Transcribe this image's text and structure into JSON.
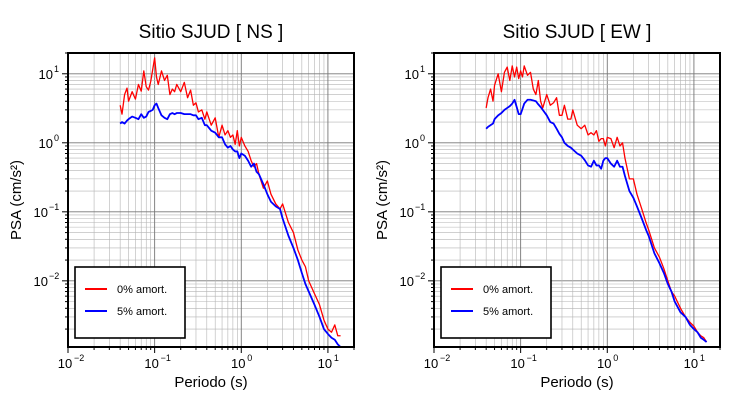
{
  "figure": {
    "legend_swatch_colors": {
      "series_0": "#ff0000",
      "series_1": "#0000ff"
    }
  },
  "chart_data": [
    {
      "type": "line",
      "title": "Sitio SJUD [ NS ]",
      "xlabel": "Periodo (s)",
      "ylabel": "PSA (cm/s²)",
      "x_scale": "log",
      "y_scale": "log",
      "xlim": [
        0.01,
        20
      ],
      "ylim": [
        0.0011,
        20
      ],
      "x_ticks": [
        {
          "value": 0.01,
          "base": "10",
          "exp": "−2"
        },
        {
          "value": 0.1,
          "base": "10",
          "exp": "−1"
        },
        {
          "value": 1,
          "base": "10",
          "exp": "0"
        },
        {
          "value": 10,
          "base": "10",
          "exp": "1"
        }
      ],
      "y_ticks": [
        {
          "value": 0.01,
          "base": "10",
          "exp": "−2"
        },
        {
          "value": 0.1,
          "base": "10",
          "exp": "−1"
        },
        {
          "value": 1,
          "base": "10",
          "exp": "0"
        },
        {
          "value": 10,
          "base": "10",
          "exp": "1"
        }
      ],
      "grid": true,
      "legend_position": "bottom-left",
      "series": [
        {
          "name": "0% amort.",
          "color": "#ff0000",
          "x": [
            0.04,
            0.042,
            0.045,
            0.048,
            0.05,
            0.055,
            0.06,
            0.065,
            0.07,
            0.075,
            0.08,
            0.085,
            0.09,
            0.095,
            0.1,
            0.105,
            0.11,
            0.12,
            0.13,
            0.14,
            0.15,
            0.16,
            0.17,
            0.18,
            0.2,
            0.22,
            0.24,
            0.26,
            0.28,
            0.3,
            0.32,
            0.35,
            0.38,
            0.4,
            0.45,
            0.5,
            0.55,
            0.6,
            0.65,
            0.7,
            0.75,
            0.8,
            0.85,
            0.9,
            0.95,
            1.0,
            1.1,
            1.2,
            1.3,
            1.4,
            1.5,
            1.6,
            1.8,
            2.0,
            2.2,
            2.5,
            2.8,
            3.0,
            3.5,
            4.0,
            4.5,
            5.0,
            5.5,
            6.0,
            7.0,
            8.0,
            9.0,
            10.0,
            11.0,
            12.0,
            13.0,
            14.0
          ],
          "y": [
            3.5,
            2.6,
            5.0,
            6.2,
            4.0,
            5.5,
            4.3,
            7.0,
            5.6,
            11.0,
            6.5,
            5.8,
            7.7,
            11.5,
            17.0,
            9.0,
            7.0,
            11.0,
            8.0,
            9.5,
            5.0,
            6.0,
            5.5,
            7.0,
            5.5,
            7.5,
            4.5,
            5.8,
            3.5,
            3.8,
            2.8,
            3.0,
            2.2,
            2.8,
            1.8,
            2.3,
            1.2,
            1.8,
            1.3,
            1.5,
            1.2,
            1.3,
            0.95,
            1.5,
            0.9,
            1.2,
            0.9,
            0.75,
            0.55,
            0.45,
            0.5,
            0.35,
            0.22,
            0.28,
            0.18,
            0.13,
            0.11,
            0.13,
            0.07,
            0.05,
            0.028,
            0.02,
            0.016,
            0.01,
            0.0065,
            0.0045,
            0.0027,
            0.002,
            0.0018,
            0.0023,
            0.0016,
            0.0016
          ]
        },
        {
          "name": "5% amort.",
          "color": "#0000ff",
          "x": [
            0.04,
            0.042,
            0.045,
            0.048,
            0.05,
            0.055,
            0.06,
            0.065,
            0.07,
            0.075,
            0.08,
            0.085,
            0.09,
            0.095,
            0.1,
            0.105,
            0.11,
            0.12,
            0.13,
            0.14,
            0.15,
            0.16,
            0.17,
            0.18,
            0.2,
            0.22,
            0.24,
            0.26,
            0.28,
            0.3,
            0.32,
            0.35,
            0.38,
            0.4,
            0.45,
            0.5,
            0.55,
            0.6,
            0.65,
            0.7,
            0.75,
            0.8,
            0.85,
            0.9,
            0.95,
            1.0,
            1.1,
            1.2,
            1.3,
            1.4,
            1.5,
            1.6,
            1.8,
            2.0,
            2.2,
            2.5,
            2.8,
            3.0,
            3.5,
            4.0,
            4.5,
            5.0,
            5.5,
            6.0,
            7.0,
            8.0,
            9.0,
            10.0,
            11.0,
            12.0,
            13.0,
            14.0
          ],
          "y": [
            1.9,
            2.0,
            1.9,
            2.1,
            2.2,
            2.4,
            2.3,
            2.2,
            2.6,
            2.3,
            2.4,
            2.8,
            2.9,
            3.0,
            3.5,
            3.7,
            3.2,
            2.5,
            2.3,
            2.2,
            2.6,
            2.7,
            2.6,
            2.7,
            2.7,
            2.6,
            2.6,
            2.6,
            2.5,
            2.5,
            2.2,
            2.3,
            1.8,
            1.8,
            1.5,
            1.4,
            1.2,
            1.2,
            0.95,
            0.85,
            0.9,
            0.8,
            0.75,
            0.75,
            0.6,
            0.7,
            0.65,
            0.55,
            0.45,
            0.5,
            0.38,
            0.35,
            0.25,
            0.18,
            0.14,
            0.12,
            0.11,
            0.08,
            0.045,
            0.03,
            0.02,
            0.013,
            0.009,
            0.007,
            0.0045,
            0.003,
            0.002,
            0.0017,
            0.0015,
            0.0014,
            0.0012,
            0.0011
          ]
        }
      ]
    },
    {
      "type": "line",
      "title": "Sitio SJUD [ EW ]",
      "xlabel": "Periodo (s)",
      "ylabel": "PSA (cm/s²)",
      "x_scale": "log",
      "y_scale": "log",
      "xlim": [
        0.01,
        20
      ],
      "ylim": [
        0.0011,
        20
      ],
      "x_ticks": [
        {
          "value": 0.01,
          "base": "10",
          "exp": "−2"
        },
        {
          "value": 0.1,
          "base": "10",
          "exp": "−1"
        },
        {
          "value": 1,
          "base": "10",
          "exp": "0"
        },
        {
          "value": 10,
          "base": "10",
          "exp": "1"
        }
      ],
      "y_ticks": [
        {
          "value": 0.01,
          "base": "10",
          "exp": "−2"
        },
        {
          "value": 0.1,
          "base": "10",
          "exp": "−1"
        },
        {
          "value": 1,
          "base": "10",
          "exp": "0"
        },
        {
          "value": 10,
          "base": "10",
          "exp": "1"
        }
      ],
      "grid": true,
      "legend_position": "bottom-left",
      "series": [
        {
          "name": "0% amort.",
          "color": "#ff0000",
          "x": [
            0.04,
            0.042,
            0.045,
            0.048,
            0.05,
            0.055,
            0.06,
            0.065,
            0.07,
            0.075,
            0.08,
            0.085,
            0.09,
            0.095,
            0.1,
            0.105,
            0.11,
            0.12,
            0.13,
            0.14,
            0.15,
            0.16,
            0.17,
            0.18,
            0.2,
            0.22,
            0.24,
            0.26,
            0.28,
            0.3,
            0.32,
            0.35,
            0.38,
            0.4,
            0.45,
            0.5,
            0.55,
            0.6,
            0.65,
            0.7,
            0.75,
            0.8,
            0.85,
            0.9,
            0.95,
            1.0,
            1.1,
            1.2,
            1.3,
            1.4,
            1.5,
            1.6,
            1.8,
            2.0,
            2.2,
            2.5,
            2.8,
            3.0,
            3.5,
            4.0,
            4.5,
            5.0,
            5.5,
            6.0,
            7.0,
            8.0,
            9.0,
            10.0,
            11.0,
            12.0,
            13.0,
            14.0
          ],
          "y": [
            3.2,
            4.5,
            6.0,
            4.0,
            6.8,
            10.0,
            5.5,
            10.5,
            12.5,
            8.0,
            13.0,
            9.0,
            12.5,
            8.5,
            11.0,
            9.0,
            13.0,
            9.5,
            10.5,
            6.0,
            5.0,
            8.0,
            4.0,
            3.2,
            5.0,
            3.5,
            3.8,
            4.5,
            2.5,
            2.5,
            3.5,
            2.2,
            2.2,
            3.0,
            1.8,
            1.6,
            1.8,
            1.3,
            1.4,
            1.3,
            1.5,
            1.05,
            1.15,
            1.15,
            0.9,
            1.2,
            1.15,
            0.85,
            1.2,
            0.9,
            1.0,
            0.6,
            0.3,
            0.3,
            0.18,
            0.11,
            0.07,
            0.055,
            0.03,
            0.022,
            0.015,
            0.01,
            0.007,
            0.006,
            0.004,
            0.003,
            0.0025,
            0.0022,
            0.0018,
            0.0016,
            0.0015,
            0.0013
          ]
        },
        {
          "name": "5% amort.",
          "color": "#0000ff",
          "x": [
            0.04,
            0.042,
            0.045,
            0.048,
            0.05,
            0.055,
            0.06,
            0.065,
            0.07,
            0.075,
            0.08,
            0.085,
            0.09,
            0.095,
            0.1,
            0.105,
            0.11,
            0.12,
            0.13,
            0.14,
            0.15,
            0.16,
            0.17,
            0.18,
            0.2,
            0.22,
            0.24,
            0.26,
            0.28,
            0.3,
            0.32,
            0.35,
            0.38,
            0.4,
            0.45,
            0.5,
            0.55,
            0.6,
            0.65,
            0.7,
            0.75,
            0.8,
            0.85,
            0.9,
            0.95,
            1.0,
            1.1,
            1.2,
            1.3,
            1.4,
            1.5,
            1.6,
            1.8,
            2.0,
            2.2,
            2.5,
            2.8,
            3.0,
            3.5,
            4.0,
            4.5,
            5.0,
            5.5,
            6.0,
            7.0,
            8.0,
            9.0,
            10.0,
            11.0,
            12.0,
            13.0,
            14.0
          ],
          "y": [
            1.6,
            1.7,
            1.8,
            1.9,
            2.2,
            2.5,
            2.7,
            3.0,
            3.2,
            3.4,
            3.7,
            4.2,
            3.3,
            2.6,
            2.6,
            3.1,
            3.7,
            4.2,
            4.2,
            4.1,
            4.0,
            3.6,
            3.3,
            3.0,
            2.5,
            2.0,
            1.9,
            1.6,
            1.35,
            1.2,
            1.0,
            0.9,
            0.85,
            0.8,
            0.7,
            0.65,
            0.56,
            0.47,
            0.45,
            0.55,
            0.47,
            0.47,
            0.42,
            0.55,
            0.6,
            0.6,
            0.5,
            0.45,
            0.55,
            0.45,
            0.45,
            0.33,
            0.2,
            0.16,
            0.12,
            0.08,
            0.055,
            0.045,
            0.025,
            0.018,
            0.013,
            0.009,
            0.007,
            0.005,
            0.0035,
            0.003,
            0.0023,
            0.002,
            0.0018,
            0.0015,
            0.0014,
            0.0013
          ]
        }
      ]
    }
  ]
}
